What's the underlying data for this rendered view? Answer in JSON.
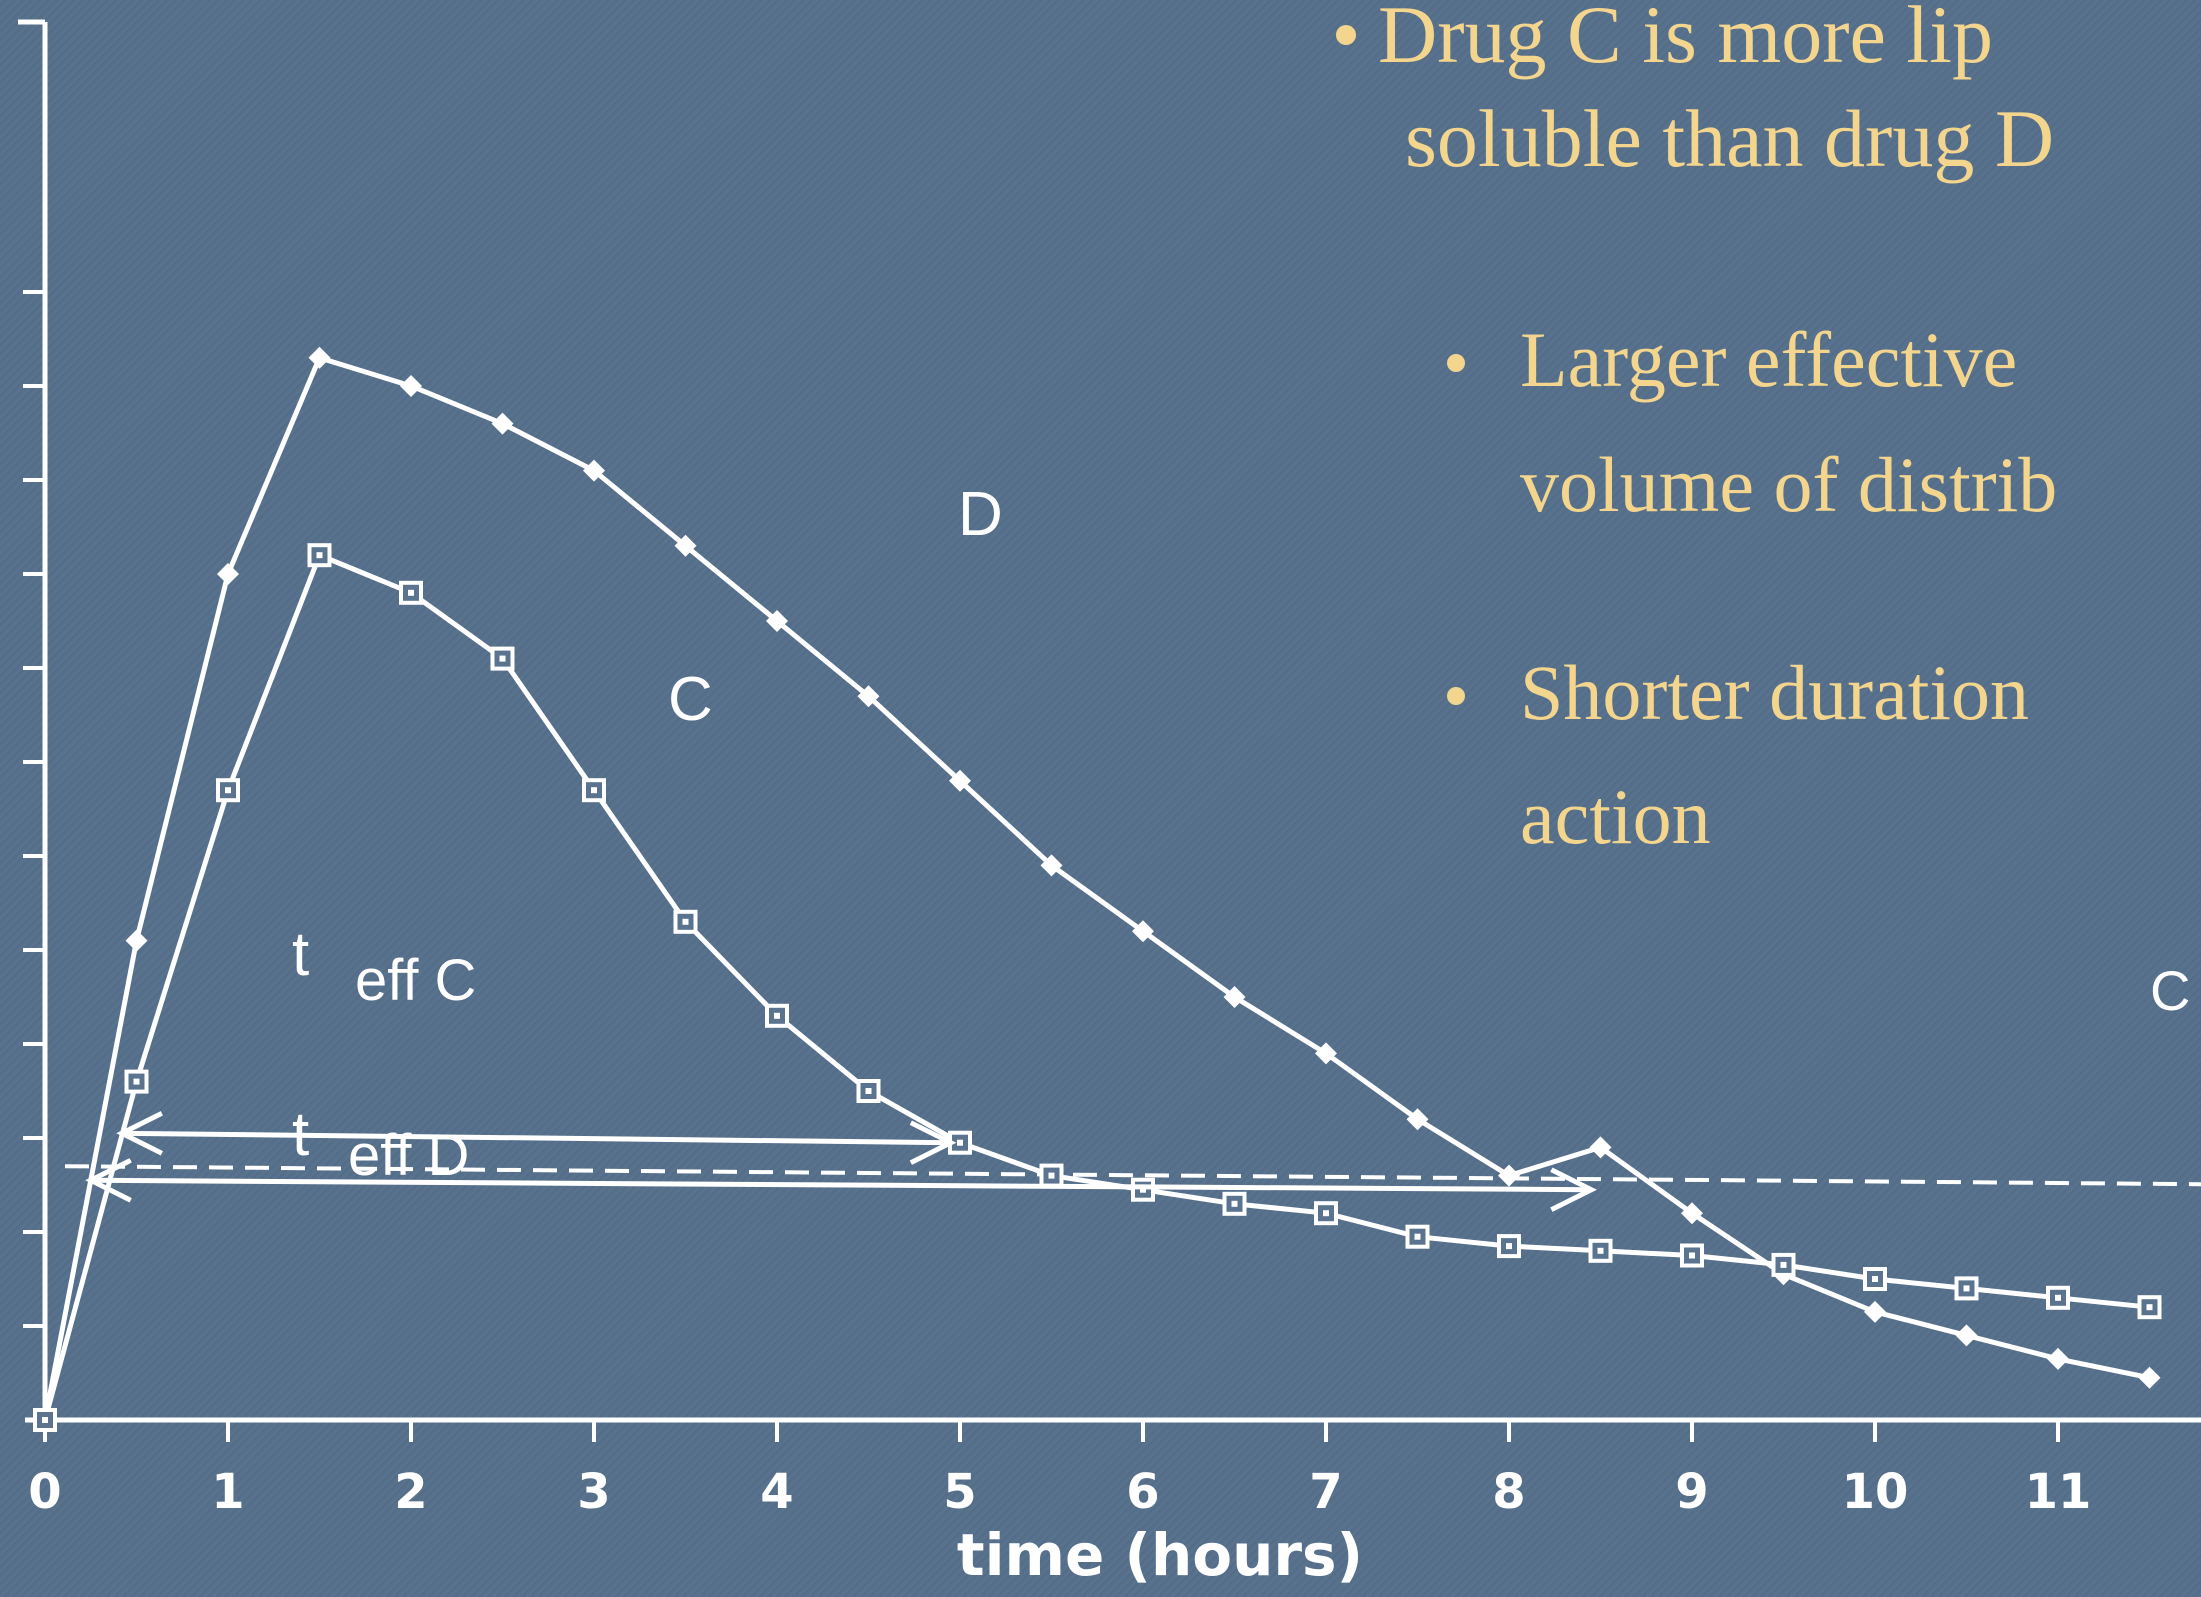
{
  "bullets": {
    "main": [
      "Drug C is more lip",
      "soluble than drug D"
    ],
    "sub1": [
      "Larger effective",
      "volume of distrib"
    ],
    "sub2": [
      "Shorter duration",
      "action"
    ]
  },
  "chart_data": {
    "type": "line",
    "xlabel": "time (hours)",
    "ylabel": "",
    "xlim": [
      0,
      11.9
    ],
    "ylim": [
      0,
      12
    ],
    "xticks": [
      "0",
      "1",
      "2",
      "3",
      "4",
      "5",
      "6",
      "7",
      "8",
      "9",
      "10",
      "11"
    ],
    "threshold": 2.7,
    "series": [
      {
        "name": "D",
        "marker": "diamond",
        "x": [
          0,
          0.5,
          1,
          1.5,
          2,
          2.5,
          3,
          3.5,
          4,
          4.5,
          5,
          5.5,
          6,
          6.5,
          7,
          7.5,
          8,
          8.5,
          9,
          9.5,
          10,
          10.5,
          11,
          11.5
        ],
        "y": [
          0,
          5.1,
          9,
          11.3,
          11.0,
          10.6,
          10.1,
          9.3,
          8.5,
          7.7,
          6.8,
          5.9,
          5.2,
          4.5,
          3.9,
          3.2,
          2.6,
          2.9,
          2.2,
          1.55,
          1.15,
          0.9,
          0.65,
          0.45
        ]
      },
      {
        "name": "C",
        "marker": "square",
        "x": [
          0,
          0.5,
          1,
          1.5,
          2,
          2.5,
          3,
          3.5,
          4,
          4.5,
          5,
          5.5,
          6,
          6.5,
          7,
          7.5,
          8,
          8.5,
          9,
          9.5,
          10,
          10.5,
          11,
          11.5
        ],
        "y": [
          0,
          3.6,
          6.7,
          9.2,
          8.8,
          8.1,
          6.7,
          5.3,
          4.3,
          3.5,
          2.95,
          2.6,
          2.45,
          2.3,
          2.2,
          1.95,
          1.85,
          1.8,
          1.75,
          1.65,
          1.5,
          1.4,
          1.3,
          1.2
        ]
      }
    ],
    "labels": {
      "D": "D",
      "C": "C",
      "C_right": "C",
      "teffC_t": "t",
      "teffC_sub": "eff C",
      "teffD_t": "t",
      "teffD_sub": "eff D"
    }
  }
}
